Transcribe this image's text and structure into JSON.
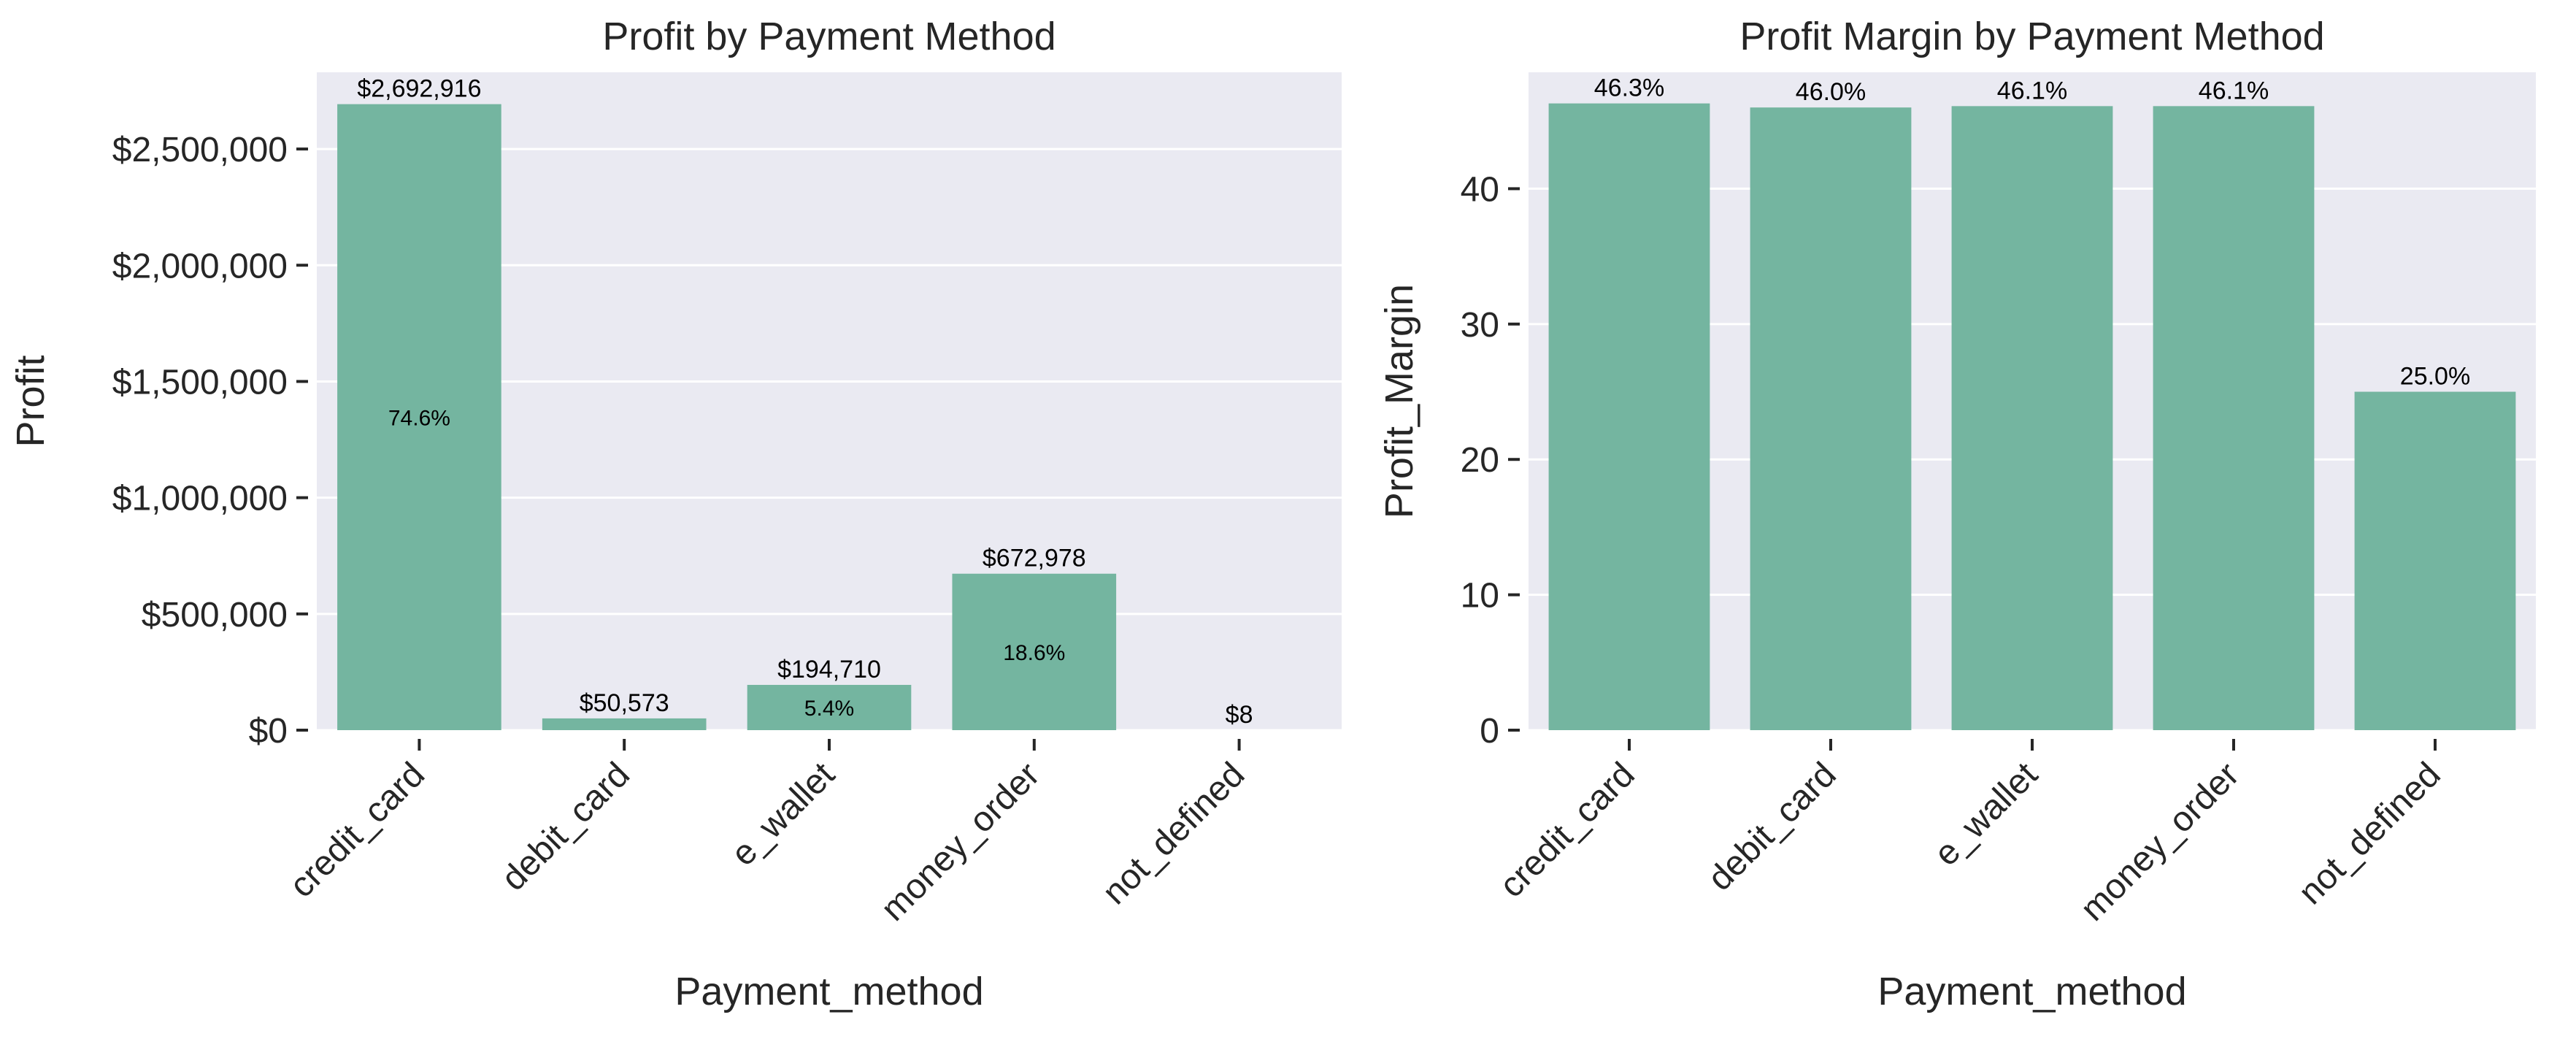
{
  "colors": {
    "plot_background": "#eaeaf2",
    "grid": "#ffffff",
    "bar": "#74b5a0",
    "text": "#262626",
    "tick": "#262626"
  },
  "chart_data": [
    {
      "type": "bar",
      "title": "Profit by Payment Method",
      "xlabel": "Payment_method",
      "ylabel": "Profit",
      "categories": [
        "credit_card",
        "debit_card",
        "e_wallet",
        "money_order",
        "not_defined"
      ],
      "values": [
        2692916,
        50573,
        194710,
        672978,
        8
      ],
      "value_labels": [
        "$2,692,916",
        "$50,573",
        "$194,710",
        "$672,978",
        "$8"
      ],
      "share_labels": [
        "74.6%",
        "",
        "5.4%",
        "18.6%",
        ""
      ],
      "ylim": [
        0,
        2830000
      ],
      "yticks": [
        0,
        500000,
        1000000,
        1500000,
        2000000,
        2500000
      ],
      "ytick_labels": [
        "$0",
        "$500,000",
        "$1,000,000",
        "$1,500,000",
        "$2,000,000",
        "$2,500,000"
      ],
      "grid": "horizontal"
    },
    {
      "type": "bar",
      "title": "Profit Margin by Payment Method",
      "xlabel": "Payment_method",
      "ylabel": "Profit_Margin",
      "categories": [
        "credit_card",
        "debit_card",
        "e_wallet",
        "money_order",
        "not_defined"
      ],
      "values": [
        46.3,
        46.0,
        46.1,
        46.1,
        25.0
      ],
      "value_labels": [
        "46.3%",
        "46.0%",
        "46.1%",
        "46.1%",
        "25.0%"
      ],
      "ylim": [
        0,
        48.6
      ],
      "yticks": [
        0,
        10,
        20,
        30,
        40
      ],
      "ytick_labels": [
        "0",
        "10",
        "20",
        "30",
        "40"
      ],
      "grid": "horizontal"
    }
  ]
}
